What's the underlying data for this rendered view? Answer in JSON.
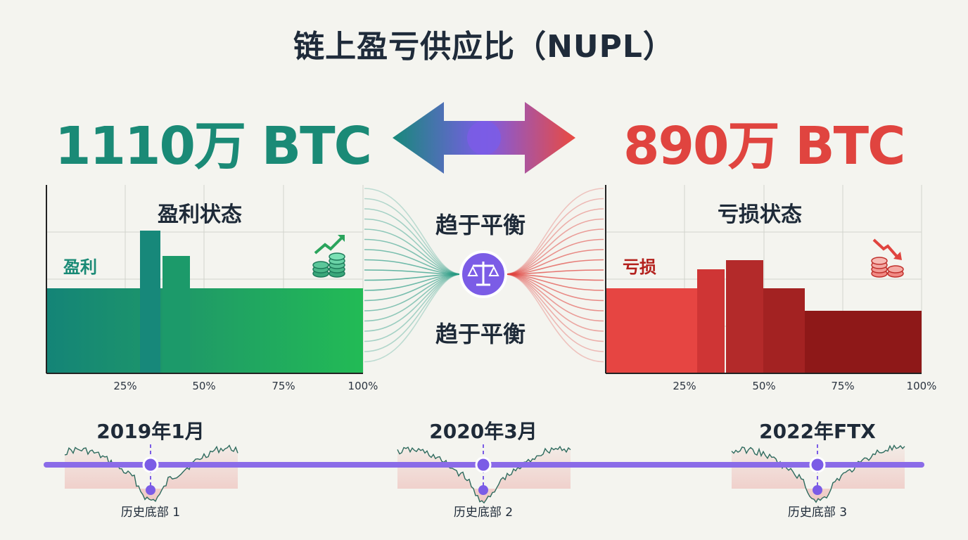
{
  "title": "链上盈亏供应比（NUPL）",
  "profit_supply": "1110万 BTC",
  "loss_supply": "890万 BTC",
  "center": {
    "top_label": "趋于平衡",
    "bottom_label": "趋于平衡",
    "icon": "scale-icon"
  },
  "colors": {
    "profit": "#1a8a76",
    "profit_light": "#22b45a",
    "loss": "#e0443f",
    "loss_dark": "#7e1010",
    "accent": "#7b5ce6"
  },
  "chart_data": [
    {
      "type": "bar",
      "title": "盈利状态",
      "side_label": "盈利",
      "icon": "coins-up-icon",
      "xticks": [
        "25%",
        "50%",
        "75%",
        "100%"
      ]
    },
    {
      "type": "bar",
      "title": "亏损状态",
      "side_label": "亏损",
      "icon": "coins-down-icon",
      "xticks": [
        "25%",
        "50%",
        "75%",
        "100%"
      ]
    }
  ],
  "timeline": {
    "events": [
      {
        "title": "2019年1月",
        "label": "历史底部 1"
      },
      {
        "title": "2020年3月",
        "label": "历史底部 2"
      },
      {
        "title": "2022年FTX",
        "label": "历史底部 3"
      }
    ]
  }
}
